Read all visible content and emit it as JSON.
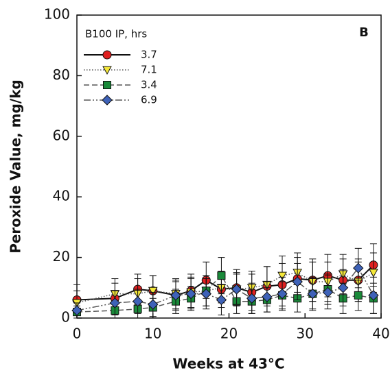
{
  "chart_data": {
    "type": "line",
    "panel_label": "B",
    "x_label": "Weeks at 43°C",
    "y_label": "Peroxide Value, mg/kg",
    "legend_title": "B100 IP, hrs",
    "x": [
      0,
      5,
      8,
      10,
      13,
      15,
      17,
      19,
      21,
      23,
      25,
      27,
      29,
      31,
      33,
      35,
      37,
      39
    ],
    "series": [
      {
        "name": "3.7",
        "color": "#e02020",
        "marker": "circle",
        "dash": "solid",
        "values": [
          6,
          6.5,
          9.5,
          9,
          7.5,
          9,
          12.5,
          9.5,
          10,
          8.5,
          10.5,
          11,
          13,
          12.5,
          14,
          12.5,
          12.5,
          17.5
        ],
        "errors": [
          5,
          5,
          5,
          5,
          5,
          5.5,
          6,
          6,
          6,
          6,
          6.5,
          7,
          7,
          7,
          7,
          7,
          7,
          7
        ]
      },
      {
        "name": "7.1",
        "color": "#f5e83a",
        "marker": "triangle-down",
        "dash": "dotted",
        "values": [
          5,
          8,
          8,
          9,
          8,
          8.5,
          9,
          10,
          9.5,
          10,
          11,
          14,
          15,
          12,
          12,
          14.5,
          12,
          15
        ],
        "errors": [
          4,
          5,
          5,
          5,
          5,
          5,
          5,
          5,
          5.5,
          5.5,
          6,
          6.5,
          6.5,
          6.5,
          6.5,
          6.5,
          6.5,
          6.5
        ]
      },
      {
        "name": "3.4",
        "color": "#1a8a3a",
        "marker": "square",
        "dash": "dashed",
        "values": [
          2,
          2.5,
          3,
          3.5,
          5.5,
          6.5,
          9,
          14,
          5.5,
          5.5,
          6,
          7.5,
          6.5,
          8,
          9.5,
          6.5,
          7.5,
          6.5
        ],
        "errors": [
          2,
          2.5,
          3,
          3,
          4,
          4,
          5,
          6,
          4,
          4,
          4,
          4.5,
          4.5,
          5,
          5,
          5,
          5,
          5
        ]
      },
      {
        "name": "6.9",
        "color": "#3e62b8",
        "marker": "diamond",
        "dash": "dash-dot-dot",
        "values": [
          2.5,
          5,
          5.5,
          4.5,
          7.5,
          8,
          8,
          6,
          9.5,
          6.5,
          7,
          8,
          12,
          8,
          8.5,
          10,
          16.5,
          7.5
        ],
        "errors": [
          2.5,
          4,
          4,
          4,
          4.5,
          5,
          5,
          5,
          5,
          5,
          5,
          5.5,
          6,
          5.5,
          5.5,
          6,
          6.5,
          6
        ]
      }
    ],
    "xlim": [
      0,
      40
    ],
    "xticks": [
      0,
      10,
      20,
      30,
      40
    ],
    "ylim": [
      0,
      100
    ],
    "yticks": [
      0,
      20,
      40,
      60,
      80,
      100
    ],
    "grid": false
  }
}
